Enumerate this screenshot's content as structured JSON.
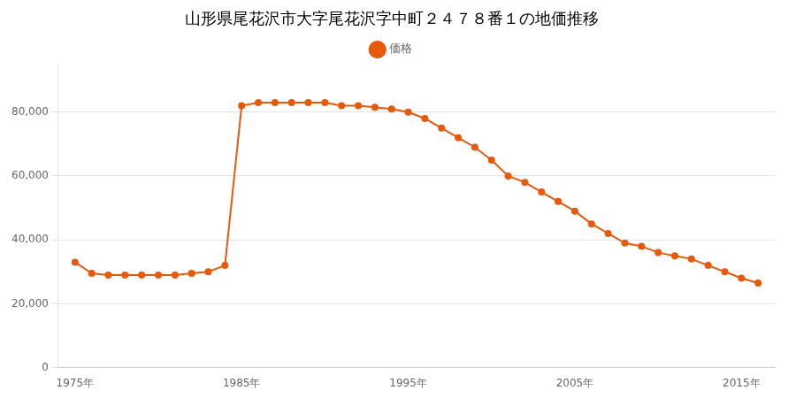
{
  "chart_data": {
    "type": "line",
    "title": "山形県尾花沢市大字尾花沢字中町２４７８番１の地価推移",
    "x": [
      1975,
      1976,
      1977,
      1978,
      1979,
      1980,
      1981,
      1982,
      1983,
      1984,
      1985,
      1986,
      1987,
      1988,
      1989,
      1990,
      1991,
      1992,
      1993,
      1994,
      1995,
      1996,
      1997,
      1998,
      1999,
      2000,
      2001,
      2002,
      2003,
      2004,
      2005,
      2006,
      2007,
      2008,
      2009,
      2010,
      2011,
      2012,
      2013,
      2014,
      2015,
      2016
    ],
    "series": [
      {
        "name": "価格",
        "color": "#E8590C",
        "marker": "circle",
        "line_style": "solid",
        "values": [
          33000,
          29500,
          29000,
          29000,
          29000,
          29000,
          29000,
          29500,
          30000,
          32000,
          82000,
          83000,
          83000,
          83000,
          83000,
          83000,
          82000,
          82000,
          81500,
          81000,
          80000,
          78000,
          75000,
          72000,
          69000,
          65000,
          60000,
          58000,
          55000,
          52000,
          49000,
          45000,
          42000,
          39000,
          38000,
          36000,
          35000,
          34000,
          32000,
          30000,
          28000,
          26500
        ]
      }
    ],
    "xlim": [
      1974,
      2017
    ],
    "xticks": [
      {
        "value": 1975,
        "label": "1975年"
      },
      {
        "value": 1985,
        "label": "1985年"
      },
      {
        "value": 1995,
        "label": "1995年"
      },
      {
        "value": 2005,
        "label": "2005年"
      },
      {
        "value": 2015,
        "label": "2015年"
      }
    ],
    "ylim": [
      0,
      95000
    ],
    "yticks": [
      0,
      {
        "value": 20000,
        "label": "20,000"
      },
      {
        "value": 40000,
        "label": "40,000"
      },
      {
        "value": 60000,
        "label": "60,000"
      },
      {
        "value": 80000,
        "label": "80,000"
      }
    ],
    "grid": "y",
    "legend": "top"
  }
}
